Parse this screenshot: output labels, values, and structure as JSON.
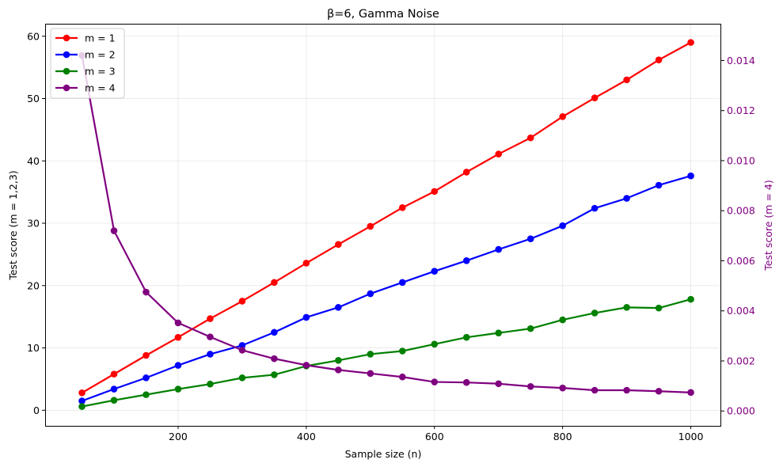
{
  "chart_data": {
    "type": "line",
    "title": "β=6, Gamma Noise",
    "xlabel": "Sample size (n)",
    "ylabel_left": "Test score (m = 1,2,3)",
    "ylabel_right": "Test score (m = 4)",
    "x": [
      50,
      100,
      150,
      200,
      250,
      300,
      350,
      400,
      450,
      500,
      550,
      600,
      650,
      700,
      750,
      800,
      850,
      900,
      950,
      1000
    ],
    "xlim": [
      -7.5,
      1047.5
    ],
    "ylim_left": [
      -2.5,
      62
    ],
    "ylim_right": [
      -0.000593,
      0.015469
    ],
    "xticks": [
      200,
      400,
      600,
      800,
      1000
    ],
    "yticks_left": [
      0,
      10,
      20,
      30,
      40,
      50,
      60
    ],
    "yticks_right": [
      "0.000",
      "0.002",
      "0.004",
      "0.006",
      "0.008",
      "0.010",
      "0.012",
      "0.014"
    ],
    "yticks_right_values": [
      0,
      0.002,
      0.004,
      0.006,
      0.008,
      0.01,
      0.012,
      0.014
    ],
    "grid": true,
    "legend_position": "top-left",
    "series": [
      {
        "name": "m = 1",
        "axis": "left",
        "color": "#ff0000",
        "values": [
          2.8,
          5.8,
          8.8,
          11.7,
          14.7,
          17.5,
          20.5,
          23.6,
          26.6,
          29.5,
          32.5,
          35.1,
          38.2,
          41.1,
          43.7,
          47.1,
          50.1,
          53.0,
          56.2,
          59.0
        ]
      },
      {
        "name": "m = 2",
        "axis": "left",
        "color": "#0000ff",
        "values": [
          1.5,
          3.4,
          5.2,
          7.2,
          9.0,
          10.4,
          12.5,
          14.9,
          16.5,
          18.7,
          20.5,
          22.3,
          24.0,
          25.8,
          27.5,
          29.6,
          32.4,
          34.0,
          36.1,
          37.6
        ]
      },
      {
        "name": "m = 3",
        "axis": "left",
        "color": "#008000",
        "values": [
          0.6,
          1.6,
          2.5,
          3.4,
          4.2,
          5.2,
          5.7,
          7.1,
          8.0,
          9.0,
          9.5,
          10.6,
          11.7,
          12.4,
          13.1,
          14.5,
          15.6,
          16.5,
          16.4,
          17.8
        ]
      },
      {
        "name": "m = 4",
        "axis": "right",
        "color": "#800080",
        "values": [
          0.0142,
          0.0072,
          0.00475,
          0.00352,
          0.00296,
          0.00243,
          0.00209,
          0.00183,
          0.00164,
          0.0015,
          0.00136,
          0.00116,
          0.00114,
          0.00109,
          0.00098,
          0.00092,
          0.00083,
          0.00083,
          0.00079,
          0.00074
        ]
      }
    ]
  }
}
